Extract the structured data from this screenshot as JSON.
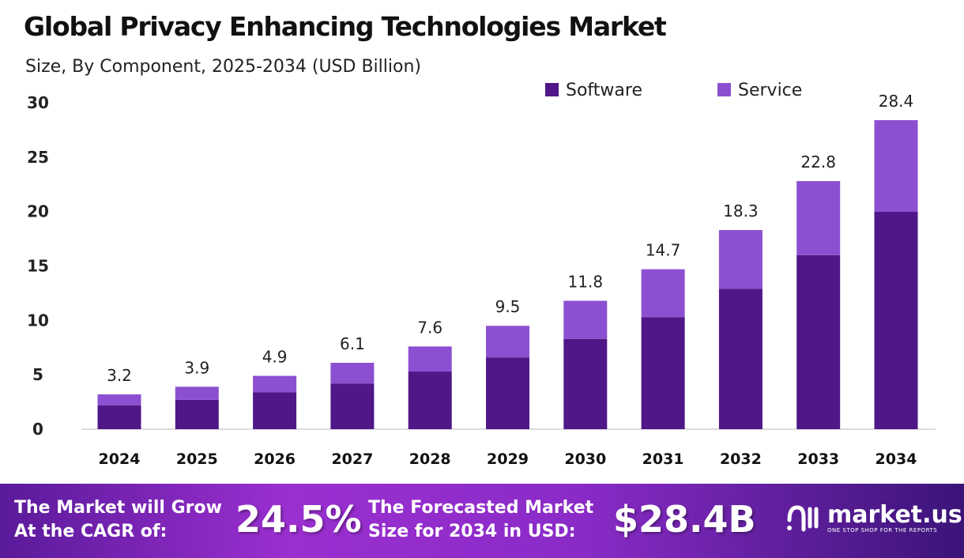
{
  "title": "Global Privacy Enhancing Technologies Market",
  "subtitle": "Size, By Component, 2025-2034 (USD Billion)",
  "chart_data": {
    "type": "bar",
    "stacked": true,
    "categories": [
      "2024",
      "2025",
      "2026",
      "2027",
      "2028",
      "2029",
      "2030",
      "2031",
      "2032",
      "2033",
      "2034"
    ],
    "series": [
      {
        "name": "Software",
        "color": "#4f1787",
        "values": [
          2.2,
          2.7,
          3.4,
          4.2,
          5.3,
          6.6,
          8.3,
          10.3,
          12.9,
          16.0,
          20.0
        ]
      },
      {
        "name": "Service",
        "color": "#8d4fd2",
        "values": [
          1.0,
          1.2,
          1.5,
          1.9,
          2.3,
          2.9,
          3.5,
          4.4,
          5.4,
          6.8,
          8.4
        ]
      }
    ],
    "totals": [
      "3.2",
      "3.9",
      "4.9",
      "6.1",
      "7.6",
      "9.5",
      "11.8",
      "14.7",
      "18.3",
      "22.8",
      "28.4"
    ],
    "yticks": [
      "0",
      "5",
      "10",
      "15",
      "20",
      "25",
      "30"
    ],
    "ylim": [
      0,
      30
    ],
    "grid": false,
    "legend": "top-right"
  },
  "footer": {
    "cagr_label_1": "The Market will Grow",
    "cagr_label_2": "At the CAGR of:",
    "cagr_value": "24.5%",
    "forecast_label_1": "The Forecasted Market",
    "forecast_label_2": "Size for 2034 in USD:",
    "forecast_value": "$28.4B",
    "logo_name": "market.us",
    "logo_tagline": "ONE STOP SHOP FOR THE REPORTS"
  }
}
